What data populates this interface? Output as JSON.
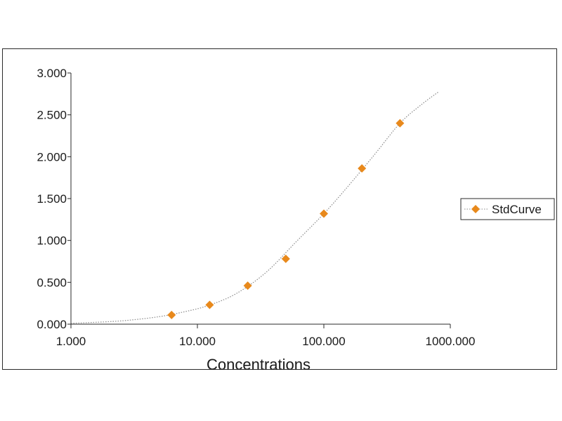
{
  "chart_data": {
    "type": "scatter",
    "xlabel": "Concentrations",
    "ylabel": "",
    "x_scale": "log",
    "xlim": [
      1,
      1000
    ],
    "ylim": [
      0,
      3
    ],
    "x_ticks": [
      "1.000",
      "10.000",
      "100.000",
      "1000.000"
    ],
    "y_ticks": [
      "0.000",
      "0.500",
      "1.000",
      "1.500",
      "2.000",
      "2.500",
      "3.000"
    ],
    "grid": false,
    "legend_position": "right",
    "series": [
      {
        "name": "StdCurve",
        "color": "#e8891c",
        "marker": "diamond",
        "x": [
          6.25,
          12.5,
          25,
          50,
          100,
          200,
          400
        ],
        "y": [
          0.11,
          0.23,
          0.46,
          0.78,
          1.32,
          1.86,
          2.4
        ]
      }
    ],
    "fit_curve": {
      "style": "dotted",
      "color": "#8a8a8a",
      "x": [
        1,
        2,
        3,
        5,
        8,
        12,
        20,
        35,
        60,
        100,
        150,
        250,
        400,
        600,
        800
      ],
      "y": [
        0.01,
        0.03,
        0.05,
        0.09,
        0.15,
        0.22,
        0.36,
        0.62,
        0.98,
        1.32,
        1.62,
        2.02,
        2.4,
        2.63,
        2.77
      ]
    }
  }
}
